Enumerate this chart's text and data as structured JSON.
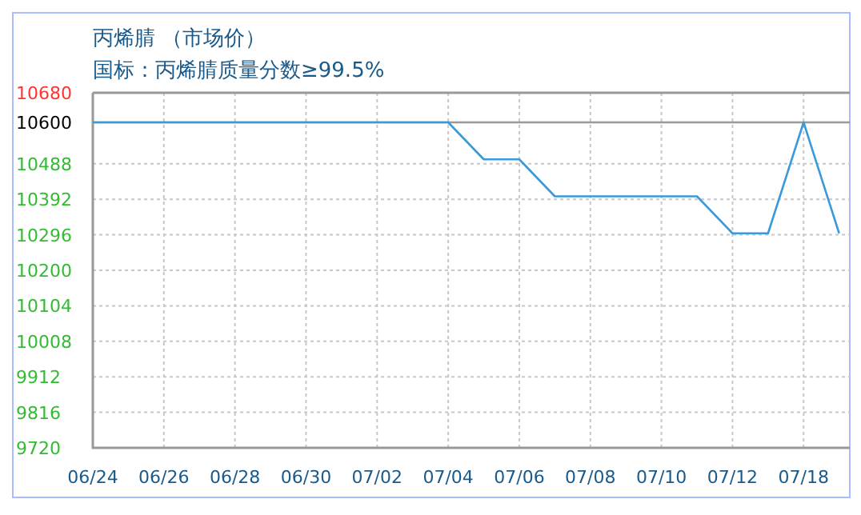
{
  "chart_data": {
    "type": "line",
    "title": "丙烯腈 （市场价）",
    "subtitle": "国标：丙烯腈质量分数≥99.5%",
    "categories": [
      "06/24",
      null,
      "06/26",
      null,
      "06/28",
      null,
      "06/30",
      null,
      "07/02",
      null,
      "07/04",
      null,
      "07/06",
      null,
      "07/08",
      null,
      "07/10",
      null,
      "07/12",
      null,
      "07/18",
      null
    ],
    "series": [
      {
        "color": "#3a9ad9",
        "values": [
          10600,
          10600,
          10600,
          10600,
          10600,
          10600,
          10600,
          10600,
          10600,
          10600,
          10600,
          10500,
          10500,
          10400,
          10400,
          10400,
          10400,
          10400,
          10300,
          10300,
          10600,
          10300
        ]
      }
    ],
    "ylim": [
      9720,
      10680
    ],
    "yticks": [
      9720,
      9816,
      9912,
      10008,
      10104,
      10200,
      10296,
      10392,
      10488,
      10680
    ],
    "ref_lines": [
      {
        "axis": "y",
        "value": 10600,
        "label": "10600",
        "color": "#999999"
      }
    ],
    "grid": true,
    "marker": "none",
    "line_style": "solid"
  }
}
